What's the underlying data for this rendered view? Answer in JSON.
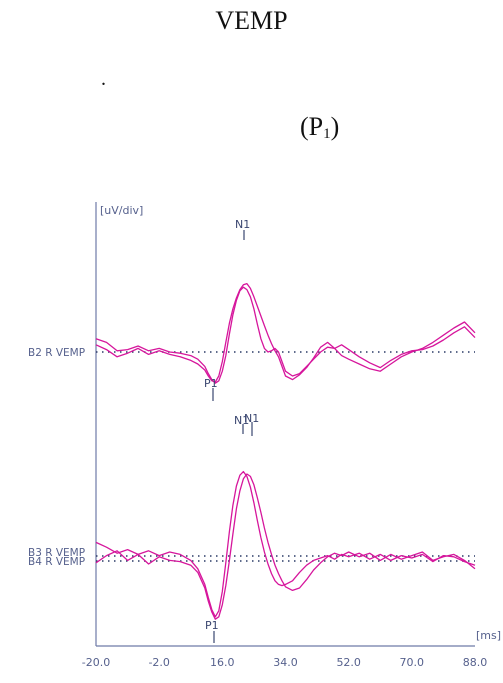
{
  "page": {
    "title": "VEMP",
    "dot": ".",
    "peak_label_main": "(P",
    "peak_label_sub": "1",
    "peak_label_close": ")"
  },
  "chart_data": {
    "type": "line",
    "xlabel": "[ms]",
    "ylabel": "[uV/div]",
    "xlim": [
      -20,
      88
    ],
    "xticks": [
      "-20.0",
      "-2.0",
      "16.0",
      "34.0",
      "52.0",
      "70.0",
      "88.0"
    ],
    "grid": false,
    "colors": {
      "trace": "#d6169c",
      "axis": "#6e7aa8",
      "baseline": "#2a3a66",
      "text": "#56618d",
      "marker": "#3a4670"
    },
    "panels": [
      {
        "channel_label": "B2 R VEMP",
        "peak_markers": [
          "N1",
          "P1"
        ],
        "series": [
          {
            "x": [
              -20,
              -17,
              -14,
              -11,
              -8,
              -5,
              -2,
              1,
              4,
              7,
              9,
              11,
              12,
              13,
              14,
              15,
              16,
              17,
              18,
              19,
              20,
              21,
              22,
              23,
              24,
              25,
              26,
              27,
              28,
              29,
              30,
              31,
              32,
              33,
              34,
              36,
              38,
              40,
              42,
              44,
              46,
              48,
              50,
              52,
              55,
              58,
              61,
              64,
              67,
              70,
              73,
              76,
              79,
              82,
              85,
              88
            ],
            "y": [
              1.1,
              0.8,
              0.1,
              0.2,
              0.5,
              0.1,
              0.3,
              0,
              -0.1,
              -0.3,
              -0.6,
              -1.2,
              -1.8,
              -2.3,
              -2.6,
              -2.4,
              -1.6,
              -0.3,
              1.5,
              3.1,
              4.3,
              5.1,
              5.4,
              5.2,
              4.6,
              3.6,
              2.3,
              1.1,
              0.3,
              0.0,
              0.1,
              0.3,
              0.0,
              -0.8,
              -1.6,
              -2.0,
              -1.8,
              -1.2,
              -0.6,
              0.0,
              0.4,
              0.3,
              0.6,
              0.2,
              -0.4,
              -0.9,
              -1.3,
              -0.7,
              -0.2,
              0.1,
              0.2,
              0.5,
              1.0,
              1.6,
              2.1,
              1.2
            ]
          },
          {
            "x": [
              -20,
              -17,
              -14,
              -11,
              -8,
              -5,
              -2,
              1,
              4,
              7,
              9,
              11,
              12,
              13,
              14,
              15,
              16,
              17,
              18,
              19,
              20,
              21,
              22,
              23,
              24,
              25,
              26,
              27,
              28,
              29,
              30,
              31,
              32,
              33,
              34,
              36,
              38,
              40,
              42,
              44,
              46,
              48,
              50,
              52,
              55,
              58,
              61,
              64,
              67,
              70,
              73,
              76,
              79,
              82,
              85,
              88
            ],
            "y": [
              0.6,
              0.2,
              -0.4,
              -0.1,
              0.3,
              -0.2,
              0.1,
              -0.2,
              -0.4,
              -0.7,
              -1.0,
              -1.5,
              -2.0,
              -2.4,
              -2.5,
              -2.0,
              -0.8,
              0.8,
              2.4,
              3.6,
              4.5,
              5.2,
              5.6,
              5.7,
              5.3,
              4.6,
              3.8,
              3.0,
              2.2,
              1.4,
              0.7,
              0.1,
              -0.4,
              -1.2,
              -2.0,
              -2.3,
              -1.9,
              -1.3,
              -0.5,
              0.4,
              0.8,
              0.3,
              -0.3,
              -0.6,
              -1.0,
              -1.4,
              -1.6,
              -1.0,
              -0.4,
              0.0,
              0.3,
              0.8,
              1.4,
              2.0,
              2.5,
              1.6
            ]
          }
        ]
      },
      {
        "channel_label_a": "B3 R VEMP",
        "channel_label_b": "B4 R VEMP",
        "peak_markers": [
          "N1",
          "N1",
          "P1"
        ],
        "series": [
          {
            "x": [
              -20,
              -17,
              -14,
              -11,
              -8,
              -5,
              -2,
              1,
              4,
              7,
              9,
              11,
              12,
              13,
              14,
              15,
              16,
              17,
              18,
              19,
              20,
              21,
              22,
              23,
              24,
              25,
              26,
              27,
              28,
              29,
              30,
              31,
              32,
              33,
              34,
              36,
              38,
              40,
              42,
              44,
              46,
              48,
              50,
              52,
              55,
              58,
              61,
              64,
              67,
              70,
              73,
              76,
              79,
              82,
              85,
              88
            ],
            "y": [
              1.3,
              0.9,
              0.4,
              0.7,
              0.3,
              0.6,
              0.2,
              0.5,
              0.3,
              -0.2,
              -0.9,
              -2.2,
              -3.3,
              -4.3,
              -4.9,
              -4.4,
              -2.8,
              -0.4,
              2.2,
              4.4,
              6.0,
              6.9,
              7.2,
              6.8,
              5.9,
              4.6,
              3.1,
              1.7,
              0.5,
              -0.5,
              -1.3,
              -1.9,
              -2.2,
              -2.3,
              -2.2,
              -1.9,
              -1.2,
              -0.6,
              -0.2,
              0.0,
              0.2,
              -0.1,
              0.3,
              0.1,
              0.4,
              -0.1,
              0.3,
              -0.2,
              0.2,
              0.0,
              0.3,
              -0.3,
              0.2,
              0.1,
              -0.3,
              -0.6
            ]
          },
          {
            "x": [
              -20,
              -17,
              -14,
              -11,
              -8,
              -5,
              -2,
              1,
              4,
              7,
              9,
              11,
              12,
              13,
              14,
              15,
              16,
              17,
              18,
              19,
              20,
              21,
              22,
              23,
              24,
              25,
              26,
              27,
              28,
              29,
              30,
              31,
              32,
              33,
              34,
              36,
              38,
              40,
              42,
              44,
              46,
              48,
              50,
              52,
              55,
              58,
              61,
              64,
              67,
              70,
              73,
              76,
              79,
              82,
              85,
              88
            ],
            "y": [
              -0.4,
              0.2,
              0.6,
              -0.2,
              0.3,
              -0.5,
              0.1,
              -0.2,
              -0.3,
              -0.6,
              -1.2,
              -2.5,
              -3.6,
              -4.5,
              -5.1,
              -4.9,
              -3.9,
              -2.3,
              -0.2,
              2.0,
              4.1,
              5.6,
              6.6,
              7.0,
              6.8,
              6.1,
              5.0,
              3.8,
              2.5,
              1.3,
              0.3,
              -0.6,
              -1.3,
              -1.9,
              -2.4,
              -2.7,
              -2.5,
              -1.8,
              -1.0,
              -0.4,
              0.1,
              0.4,
              0.2,
              0.5,
              0.1,
              0.4,
              -0.2,
              0.3,
              -0.1,
              0.2,
              0.5,
              -0.2,
              0.1,
              0.3,
              -0.2,
              -0.9
            ]
          }
        ]
      }
    ]
  }
}
